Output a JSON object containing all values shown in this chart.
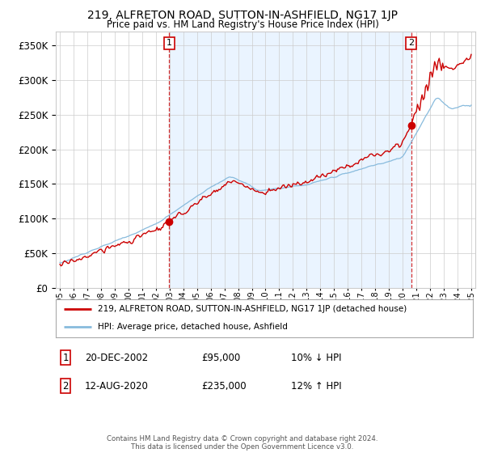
{
  "title": "219, ALFRETON ROAD, SUTTON-IN-ASHFIELD, NG17 1JP",
  "subtitle": "Price paid vs. HM Land Registry's House Price Index (HPI)",
  "legend_line1": "219, ALFRETON ROAD, SUTTON-IN-ASHFIELD, NG17 1JP (detached house)",
  "legend_line2": "HPI: Average price, detached house, Ashfield",
  "annotation1_label": "1",
  "annotation1_date": "20-DEC-2002",
  "annotation1_price": "£95,000",
  "annotation1_hpi": "10% ↓ HPI",
  "annotation1_year": 2002.97,
  "annotation1_value": 95000,
  "annotation2_label": "2",
  "annotation2_date": "12-AUG-2020",
  "annotation2_price": "£235,000",
  "annotation2_hpi": "12% ↑ HPI",
  "annotation2_year": 2020.62,
  "annotation2_value": 235000,
  "footer": "Contains HM Land Registry data © Crown copyright and database right 2024.\nThis data is licensed under the Open Government Licence v3.0.",
  "price_color": "#cc0000",
  "hpi_color": "#88bbdd",
  "vline_color": "#cc0000",
  "shade_color": "#ddeeff",
  "ylim": [
    0,
    370000
  ],
  "yticks": [
    0,
    50000,
    100000,
    150000,
    200000,
    250000,
    300000,
    350000
  ],
  "background_color": "#ffffff",
  "grid_color": "#cccccc"
}
